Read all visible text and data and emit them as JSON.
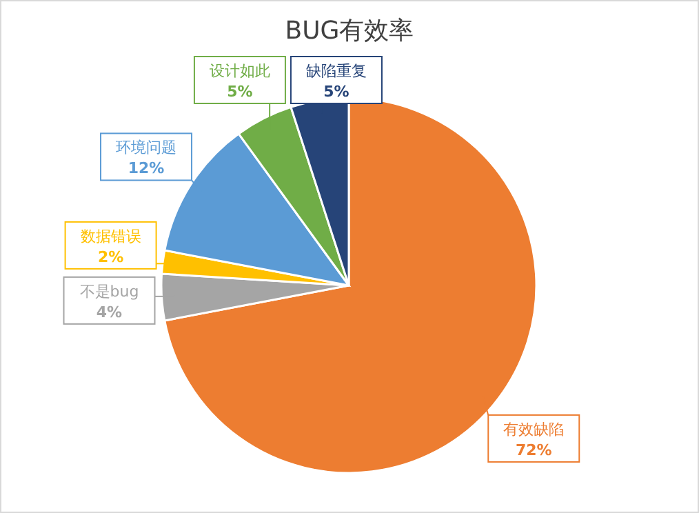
{
  "chart_data": {
    "type": "pie",
    "title": "BUG有效率",
    "categories": [
      "有效缺陷",
      "不是bug",
      "数据错误",
      "环境问题",
      "设计如此",
      "缺陷重复"
    ],
    "values": [
      72,
      4,
      2,
      12,
      5,
      5
    ],
    "value_labels": [
      "72%",
      "4%",
      "2%",
      "12%",
      "5%",
      "5%"
    ],
    "colors": [
      "#ed7d31",
      "#a5a5a5",
      "#ffc000",
      "#5b9bd5",
      "#70ad47",
      "#264478"
    ]
  }
}
